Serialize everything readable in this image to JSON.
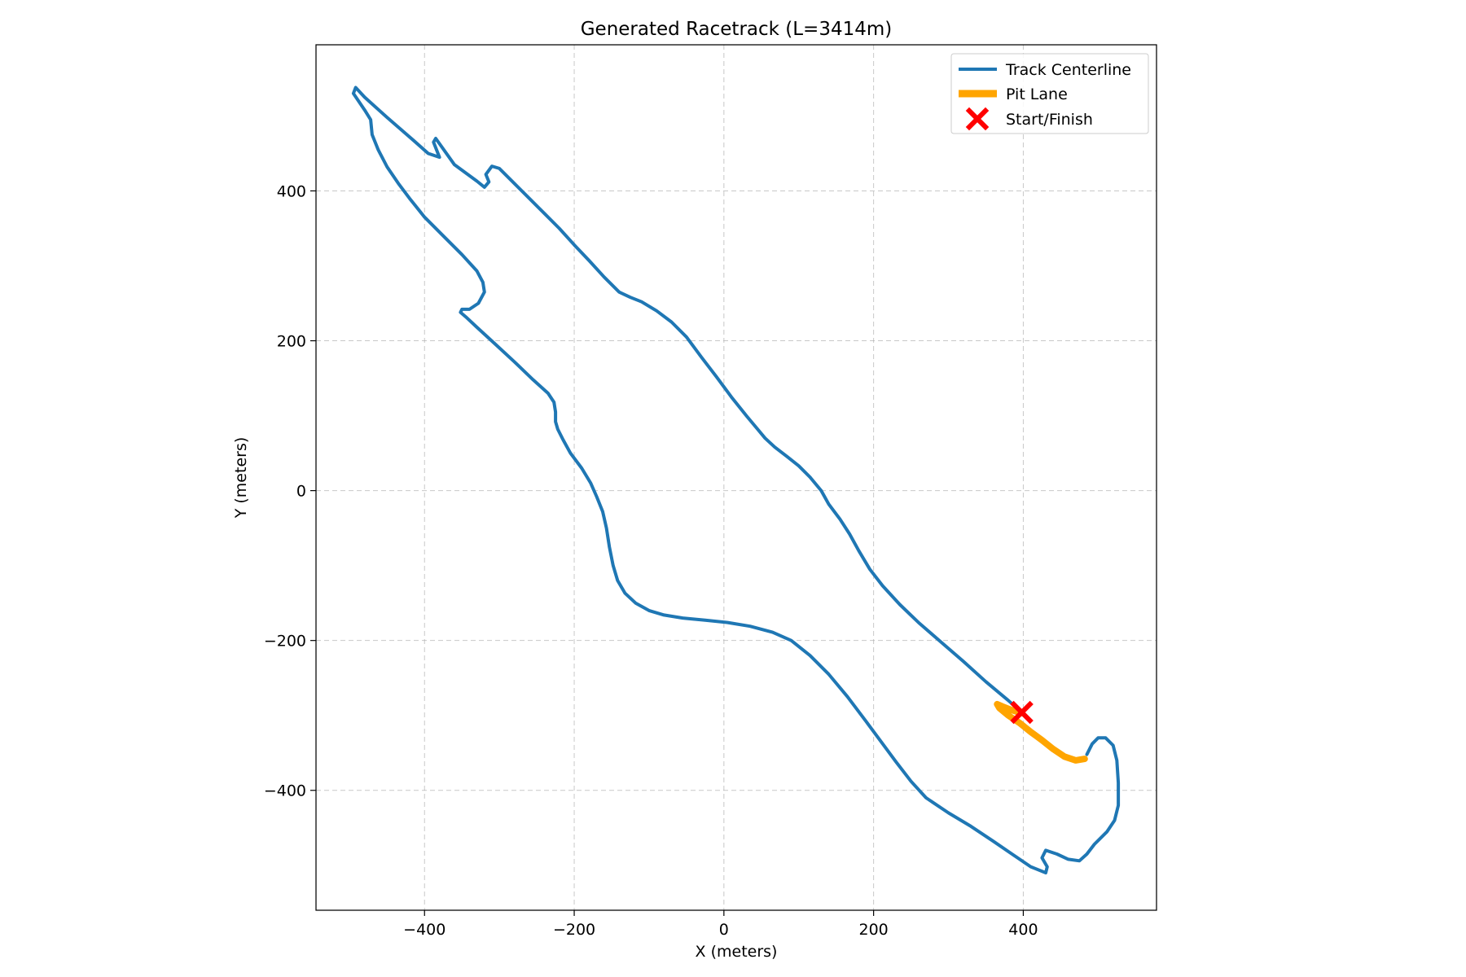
{
  "chart_data": {
    "type": "line",
    "title": "Generated Racetrack (L=3414m)",
    "xlabel": "X (meters)",
    "ylabel": "Y (meters)",
    "xlim": [
      -545,
      578
    ],
    "ylim": [
      -560,
      595
    ],
    "xticks": [
      -400,
      -200,
      0,
      200,
      400
    ],
    "xtick_labels": [
      "−400",
      "−200",
      "0",
      "200",
      "400"
    ],
    "yticks": [
      -400,
      -200,
      0,
      200,
      400
    ],
    "ytick_labels": [
      "−400",
      "−200",
      "0",
      "200",
      "400"
    ],
    "grid": true,
    "legend_position": "top-right",
    "series": [
      {
        "name": "Track Centerline",
        "color": "#1f77b4",
        "style": "line",
        "points": [
          [
            400,
            -298
          ],
          [
            380,
            -280
          ],
          [
            350,
            -255
          ],
          [
            320,
            -228
          ],
          [
            290,
            -202
          ],
          [
            260,
            -176
          ],
          [
            235,
            -152
          ],
          [
            212,
            -127
          ],
          [
            195,
            -105
          ],
          [
            180,
            -80
          ],
          [
            168,
            -58
          ],
          [
            155,
            -38
          ],
          [
            140,
            -18
          ],
          [
            130,
            0
          ],
          [
            115,
            18
          ],
          [
            100,
            33
          ],
          [
            85,
            45
          ],
          [
            68,
            58
          ],
          [
            55,
            70
          ],
          [
            45,
            82
          ],
          [
            30,
            100
          ],
          [
            10,
            125
          ],
          [
            -10,
            152
          ],
          [
            -30,
            178
          ],
          [
            -50,
            205
          ],
          [
            -70,
            225
          ],
          [
            -90,
            240
          ],
          [
            -110,
            252
          ],
          [
            -125,
            258
          ],
          [
            -140,
            265
          ],
          [
            -160,
            285
          ],
          [
            -180,
            307
          ],
          [
            -200,
            328
          ],
          [
            -220,
            350
          ],
          [
            -240,
            370
          ],
          [
            -260,
            390
          ],
          [
            -280,
            410
          ],
          [
            -300,
            430
          ],
          [
            -310,
            433
          ],
          [
            -318,
            422
          ],
          [
            -314,
            412
          ],
          [
            -320,
            405
          ],
          [
            -330,
            413
          ],
          [
            -360,
            435
          ],
          [
            -385,
            470
          ],
          [
            -388,
            465
          ],
          [
            -380,
            445
          ],
          [
            -395,
            450
          ],
          [
            -420,
            472
          ],
          [
            -450,
            498
          ],
          [
            -480,
            525
          ],
          [
            -492,
            538
          ],
          [
            -495,
            530
          ],
          [
            -480,
            508
          ],
          [
            -472,
            495
          ],
          [
            -470,
            475
          ],
          [
            -462,
            455
          ],
          [
            -450,
            432
          ],
          [
            -435,
            410
          ],
          [
            -420,
            390
          ],
          [
            -400,
            365
          ],
          [
            -375,
            340
          ],
          [
            -350,
            315
          ],
          [
            -330,
            293
          ],
          [
            -322,
            278
          ],
          [
            -320,
            265
          ],
          [
            -328,
            250
          ],
          [
            -340,
            242
          ],
          [
            -350,
            242
          ],
          [
            -352,
            238
          ],
          [
            -345,
            232
          ],
          [
            -330,
            218
          ],
          [
            -305,
            195
          ],
          [
            -280,
            172
          ],
          [
            -255,
            148
          ],
          [
            -235,
            130
          ],
          [
            -227,
            118
          ],
          [
            -225,
            105
          ],
          [
            -225,
            92
          ],
          [
            -222,
            82
          ],
          [
            -215,
            68
          ],
          [
            -205,
            50
          ],
          [
            -190,
            30
          ],
          [
            -178,
            10
          ],
          [
            -170,
            -8
          ],
          [
            -162,
            -28
          ],
          [
            -157,
            -50
          ],
          [
            -153,
            -75
          ],
          [
            -148,
            -100
          ],
          [
            -142,
            -120
          ],
          [
            -132,
            -137
          ],
          [
            -118,
            -150
          ],
          [
            -100,
            -160
          ],
          [
            -80,
            -166
          ],
          [
            -55,
            -170
          ],
          [
            -25,
            -173
          ],
          [
            5,
            -176
          ],
          [
            35,
            -181
          ],
          [
            65,
            -189
          ],
          [
            90,
            -200
          ],
          [
            115,
            -220
          ],
          [
            140,
            -245
          ],
          [
            165,
            -275
          ],
          [
            190,
            -308
          ],
          [
            210,
            -335
          ],
          [
            230,
            -362
          ],
          [
            250,
            -388
          ],
          [
            270,
            -410
          ],
          [
            300,
            -430
          ],
          [
            330,
            -448
          ],
          [
            360,
            -468
          ],
          [
            385,
            -485
          ],
          [
            410,
            -502
          ],
          [
            430,
            -510
          ],
          [
            432,
            -502
          ],
          [
            425,
            -490
          ],
          [
            430,
            -480
          ],
          [
            445,
            -485
          ],
          [
            460,
            -492
          ],
          [
            475,
            -494
          ],
          [
            485,
            -485
          ],
          [
            495,
            -472
          ],
          [
            512,
            -455
          ],
          [
            522,
            -440
          ],
          [
            527,
            -420
          ],
          [
            527,
            -390
          ],
          [
            525,
            -360
          ],
          [
            520,
            -340
          ],
          [
            510,
            -330
          ],
          [
            500,
            -330
          ],
          [
            492,
            -338
          ],
          [
            485,
            -352
          ]
        ]
      },
      {
        "name": "Pit Lane",
        "color": "#ffa500",
        "style": "thick",
        "points": [
          [
            482,
            -358
          ],
          [
            470,
            -360
          ],
          [
            455,
            -355
          ],
          [
            440,
            -345
          ],
          [
            425,
            -333
          ],
          [
            410,
            -322
          ],
          [
            395,
            -310
          ],
          [
            380,
            -300
          ],
          [
            368,
            -290
          ],
          [
            365,
            -285
          ],
          [
            372,
            -288
          ],
          [
            385,
            -293
          ],
          [
            398,
            -297
          ]
        ]
      },
      {
        "name": "Start/Finish",
        "color": "#ff0000",
        "style": "marker-x",
        "points": [
          [
            398,
            -296
          ]
        ]
      }
    ]
  }
}
